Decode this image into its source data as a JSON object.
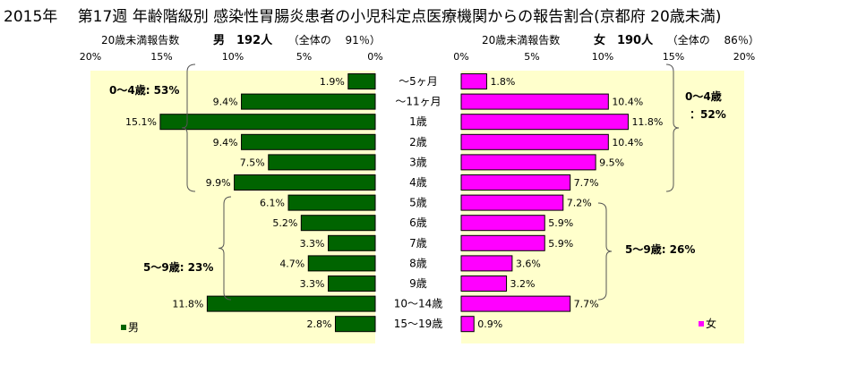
{
  "title": "2015年　 第17週 年齢階級別 感染性胃腸炎患者の小児科定点医療機関からの報告割合(京都府 20歳未満)",
  "male_header": {
    "prefix": "20歳未満報告数",
    "label": "男　192人",
    "share": "（全体の　 91％）"
  },
  "female_header": {
    "prefix": "20歳未満報告数",
    "label": "女　190人",
    "share": "（全体の　 86％）"
  },
  "chart_data": {
    "type": "bar",
    "orientation": "horizontal-pyramid",
    "categories": [
      "～5ヶ月",
      "～11ヶ月",
      "1歳",
      "2歳",
      "3歳",
      "4歳",
      "5歳",
      "6歳",
      "7歳",
      "8歳",
      "9歳",
      "10～14歳",
      "15～19歳"
    ],
    "series": [
      {
        "name": "男",
        "values": [
          1.9,
          9.4,
          15.1,
          9.4,
          7.5,
          9.9,
          6.1,
          5.2,
          3.3,
          4.7,
          3.3,
          11.8,
          2.8
        ],
        "labels": [
          "1.9%",
          "9.4%",
          "15.1%",
          "9.4%",
          "7.5%",
          "9.9%",
          "6.1%",
          "5.2%",
          "3.3%",
          "4.7%",
          "3.3%",
          "11.8%",
          "2.8%"
        ],
        "color": "#006400"
      },
      {
        "name": "女",
        "values": [
          1.8,
          10.4,
          11.8,
          10.4,
          9.5,
          7.7,
          7.2,
          5.9,
          5.9,
          3.6,
          3.2,
          7.7,
          0.9
        ],
        "labels": [
          "1.8%",
          "10.4%",
          "11.8%",
          "10.4%",
          "9.5%",
          "7.7%",
          "7.2%",
          "5.9%",
          "5.9%",
          "3.6%",
          "3.2%",
          "7.7%",
          "0.9%"
        ],
        "color": "#ff00ff"
      }
    ],
    "xlim": [
      0,
      20
    ],
    "male_ticks": [
      "20%",
      "15%",
      "10%",
      "5%",
      "0%"
    ],
    "female_ticks": [
      "0%",
      "5%",
      "10%",
      "15%",
      "20%"
    ],
    "plot_background": "#ffffcc",
    "annotations": {
      "male_0_4": "0～4歳: 53%",
      "male_5_9": "5～9歳: 23%",
      "female_0_4_line1": "0～4歳",
      "female_0_4_line2": "：52%",
      "female_5_9": "5～9歳: 26%"
    },
    "legend_position": "bottom-left / bottom-right"
  }
}
